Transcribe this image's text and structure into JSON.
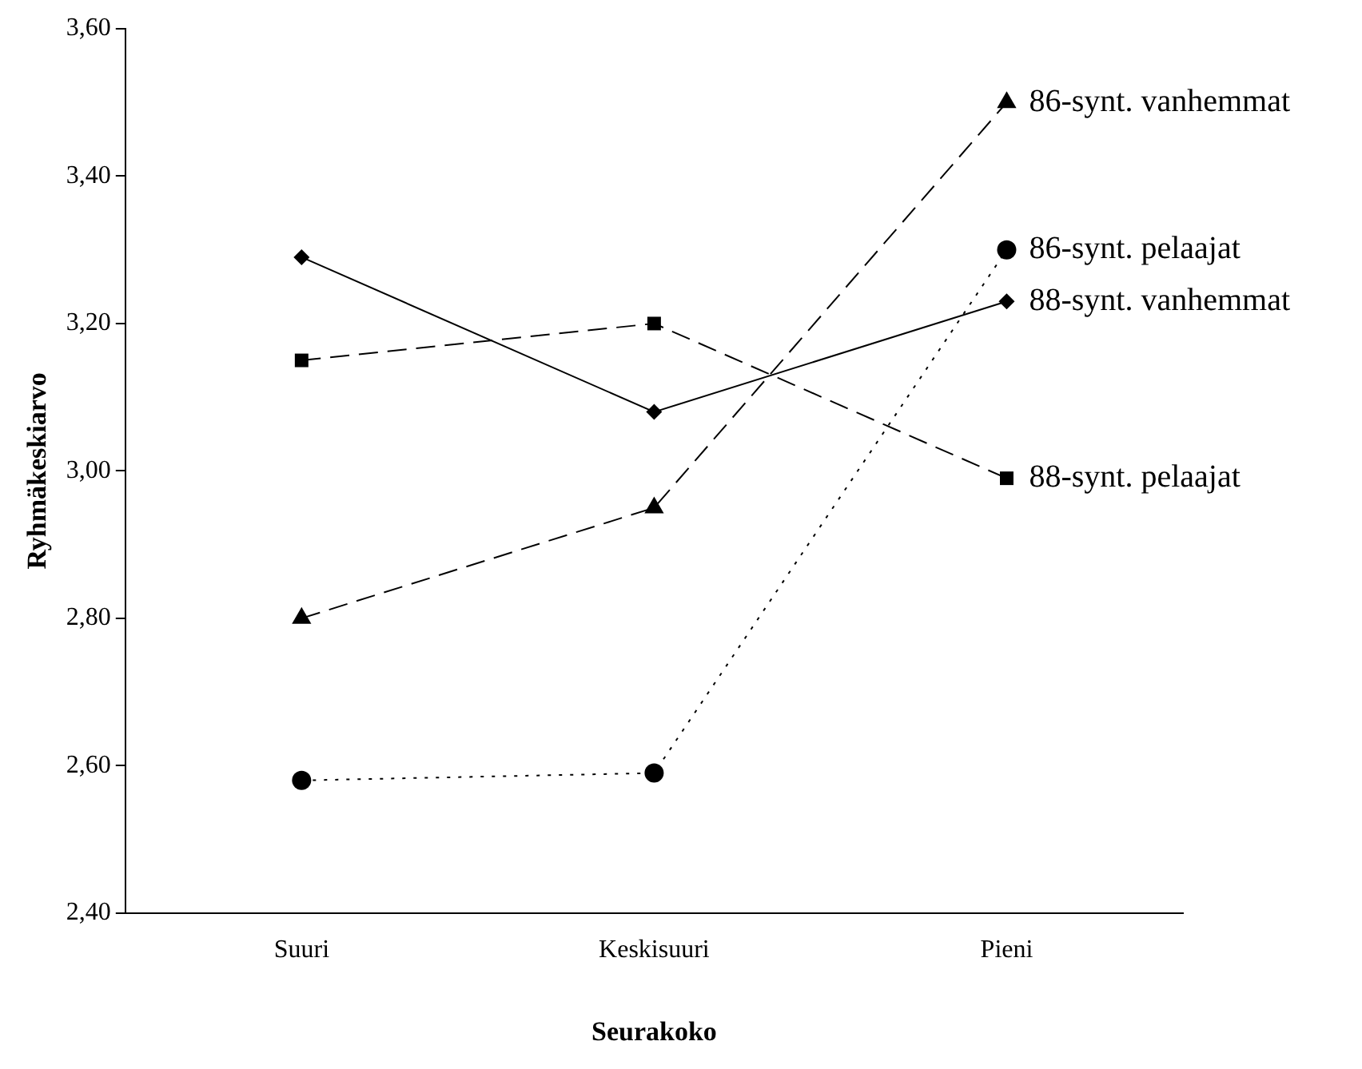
{
  "chart_data": {
    "type": "line",
    "xlabel": "Seurakoko",
    "ylabel": "Ryhmäkeskiarvo",
    "categories": [
      "Suuri",
      "Keskisuuri",
      "Pieni"
    ],
    "series": [
      {
        "name": "86-synt. vanhemmat",
        "color": "#000000",
        "values": [
          2.8,
          2.95,
          3.5
        ],
        "marker": "triangle",
        "line_style": "dashed"
      },
      {
        "name": "86-synt. pelaajat",
        "color": "#000000",
        "values": [
          2.58,
          2.59,
          3.3
        ],
        "marker": "circle",
        "line_style": "dotted"
      },
      {
        "name": "88-synt. vanhemmat",
        "color": "#000000",
        "values": [
          3.29,
          3.08,
          3.23
        ],
        "marker": "diamond",
        "line_style": "solid"
      },
      {
        "name": "88-synt. pelaajat",
        "color": "#000000",
        "values": [
          3.15,
          3.2,
          2.99
        ],
        "marker": "square",
        "line_style": "dashed"
      }
    ],
    "ylim": [
      2.4,
      3.6
    ],
    "yticks": [
      {
        "value": 2.4,
        "label": "2,40"
      },
      {
        "value": 2.6,
        "label": "2,60"
      },
      {
        "value": 2.8,
        "label": "2,80"
      },
      {
        "value": 3.0,
        "label": "3,00"
      },
      {
        "value": 3.2,
        "label": "3,20"
      },
      {
        "value": 3.4,
        "label": "3,40"
      },
      {
        "value": 3.6,
        "label": "3,60"
      }
    ],
    "grid": false,
    "legend": false
  }
}
